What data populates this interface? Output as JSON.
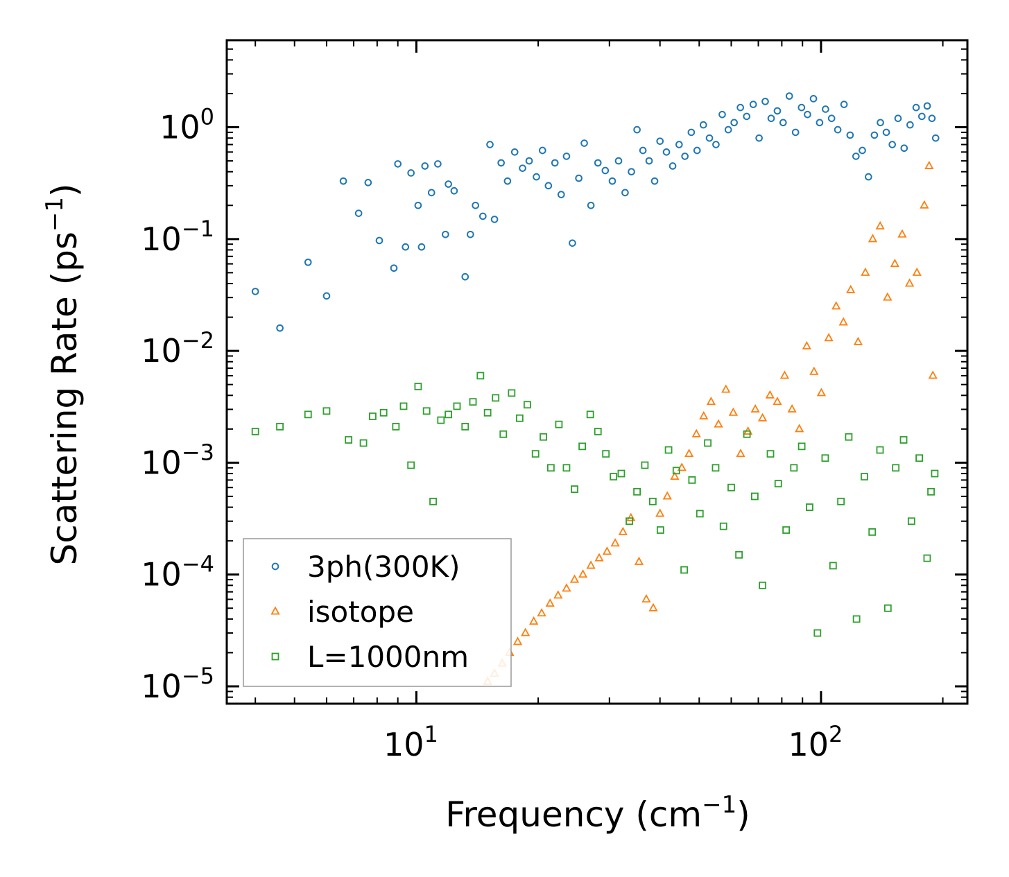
{
  "chart_data": {
    "type": "scatter",
    "title": "",
    "xlabel": "Frequency (cm",
    "xlabel_sup": "−1",
    "xlabel_end": ")",
    "ylabel": "Scattering Rate (ps",
    "ylabel_sup": "−1",
    "ylabel_end": ")",
    "xscale": "log",
    "yscale": "log",
    "xlim": [
      3.4,
      230
    ],
    "ylim": [
      7e-06,
      6
    ],
    "x_ticks": [
      {
        "value": 10,
        "base": "10",
        "exp": "1"
      },
      {
        "value": 100,
        "base": "10",
        "exp": "2"
      }
    ],
    "y_ticks": [
      {
        "value": 1,
        "base": "10",
        "exp": "0"
      },
      {
        "value": 0.1,
        "base": "10",
        "exp": "−1"
      },
      {
        "value": 0.01,
        "base": "10",
        "exp": "−2"
      },
      {
        "value": 0.001,
        "base": "10",
        "exp": "−3"
      },
      {
        "value": 0.0001,
        "base": "10",
        "exp": "−4"
      },
      {
        "value": 1e-05,
        "base": "10",
        "exp": "−5"
      }
    ],
    "legend_position": "bottom-left",
    "series": [
      {
        "name": "3ph(300K)",
        "marker": "circle",
        "color": "#1f77b4",
        "x": [
          4.0,
          4.6,
          5.4,
          6.0,
          6.6,
          7.2,
          7.6,
          8.1,
          8.8,
          9.0,
          9.4,
          9.7,
          10.1,
          10.3,
          10.5,
          10.9,
          11.3,
          11.8,
          12.0,
          12.4,
          13.2,
          13.6,
          14.0,
          14.6,
          15.2,
          15.6,
          16.2,
          16.8,
          17.5,
          18.3,
          19.0,
          19.8,
          20.5,
          21.2,
          22.0,
          22.8,
          23.5,
          24.3,
          25.2,
          26.0,
          27.0,
          28.1,
          29.3,
          30.5,
          31.6,
          32.8,
          34.0,
          35.1,
          36.3,
          37.6,
          38.8,
          40.0,
          41.5,
          43.0,
          44.6,
          46.1,
          47.8,
          49.4,
          51.2,
          53.0,
          55.0,
          57.0,
          59.0,
          61.0,
          63.2,
          65.5,
          68.0,
          70.3,
          72.8,
          75.3,
          78.0,
          80.6,
          83.5,
          86.5,
          89.5,
          92.6,
          95.8,
          99.2,
          102.6,
          106.2,
          110.0,
          114.0,
          118.0,
          122.0,
          126.5,
          131.0,
          135.5,
          140.2,
          145.0,
          150.0,
          155.0,
          160.5,
          166.0,
          171.8,
          177.5,
          183.0,
          188.0,
          192.0
        ],
        "y": [
          0.034,
          0.016,
          0.062,
          0.031,
          0.33,
          0.17,
          0.32,
          0.097,
          0.055,
          0.47,
          0.085,
          0.39,
          0.2,
          0.085,
          0.45,
          0.26,
          0.47,
          0.11,
          0.31,
          0.27,
          0.046,
          0.11,
          0.2,
          0.16,
          0.7,
          0.15,
          0.48,
          0.33,
          0.6,
          0.43,
          0.5,
          0.36,
          0.62,
          0.3,
          0.48,
          0.25,
          0.55,
          0.092,
          0.35,
          0.72,
          0.2,
          0.48,
          0.41,
          0.33,
          0.5,
          0.26,
          0.4,
          0.95,
          0.62,
          0.5,
          0.33,
          0.75,
          0.6,
          0.45,
          0.7,
          0.55,
          0.9,
          0.62,
          1.05,
          0.8,
          0.7,
          1.3,
          0.95,
          1.1,
          1.5,
          1.25,
          1.6,
          0.8,
          1.7,
          1.2,
          1.4,
          1.1,
          1.9,
          0.9,
          1.5,
          1.3,
          1.8,
          1.1,
          1.45,
          1.2,
          0.95,
          1.6,
          0.85,
          0.55,
          0.62,
          0.36,
          0.85,
          1.1,
          0.9,
          0.7,
          1.2,
          0.65,
          1.05,
          1.5,
          1.25,
          1.55,
          1.2,
          0.8
        ]
      },
      {
        "name": "isotope",
        "marker": "triangle",
        "color": "#ff7f0e",
        "x": [
          15.0,
          15.6,
          16.3,
          17.0,
          17.8,
          18.6,
          19.5,
          20.4,
          21.4,
          22.4,
          23.5,
          24.6,
          25.8,
          27.0,
          28.3,
          29.6,
          31.0,
          32.4,
          33.9,
          35.5,
          37.0,
          38.5,
          40.0,
          41.7,
          43.5,
          45.3,
          47.2,
          49.2,
          51.3,
          53.5,
          55.8,
          58.2,
          60.7,
          63.3,
          66.0,
          68.8,
          71.7,
          74.8,
          78.0,
          81.3,
          84.8,
          88.4,
          92.2,
          96.1,
          100.2,
          104.5,
          109.0,
          113.6,
          118.4,
          123.5,
          128.7,
          134.2,
          140.0,
          146.0,
          152.2,
          158.7,
          165.5,
          172.6,
          180.0,
          185.0,
          189.0
        ],
        "y": [
          1.1e-05,
          1.3e-05,
          1.6e-05,
          2e-05,
          2.5e-05,
          3e-05,
          3.8e-05,
          4.5e-05,
          5.5e-05,
          6.5e-05,
          7.5e-05,
          9e-05,
          0.0001,
          0.00012,
          0.00014,
          0.00016,
          0.00019,
          0.00024,
          0.00032,
          0.00013,
          6e-05,
          5e-05,
          0.00035,
          0.0005,
          0.00075,
          0.0009,
          0.0012,
          0.0018,
          0.0026,
          0.0035,
          0.0022,
          0.0045,
          0.0028,
          0.0012,
          0.0019,
          0.003,
          0.0025,
          0.004,
          0.0035,
          0.006,
          0.003,
          0.002,
          0.011,
          0.0065,
          0.0042,
          0.013,
          0.025,
          0.018,
          0.035,
          0.012,
          0.05,
          0.1,
          0.13,
          0.03,
          0.06,
          0.11,
          0.04,
          0.05,
          0.2,
          0.45,
          0.006
        ]
      },
      {
        "name": "L=1000nm",
        "marker": "square",
        "color": "#2ca02c",
        "x": [
          4.0,
          4.6,
          5.4,
          6.0,
          6.8,
          7.4,
          7.8,
          8.3,
          8.9,
          9.3,
          9.7,
          10.1,
          10.6,
          11.0,
          11.5,
          12.0,
          12.6,
          13.2,
          13.8,
          14.4,
          15.0,
          15.7,
          16.4,
          17.2,
          18.0,
          18.8,
          19.7,
          20.6,
          21.5,
          22.5,
          23.5,
          24.6,
          25.7,
          26.9,
          28.1,
          29.4,
          30.7,
          32.1,
          33.6,
          35.1,
          36.7,
          38.4,
          40.1,
          42.0,
          43.9,
          45.9,
          48.0,
          50.2,
          52.5,
          54.9,
          57.4,
          60.0,
          62.7,
          65.6,
          68.6,
          71.7,
          75.0,
          78.4,
          82.0,
          85.7,
          89.6,
          93.7,
          98.0,
          102.4,
          107.1,
          112.0,
          117.1,
          122.4,
          128.0,
          133.8,
          139.9,
          146.3,
          153.0,
          160.0,
          167.3,
          174.9,
          182.9,
          187.0,
          191.0
        ],
        "y": [
          0.0019,
          0.0021,
          0.0027,
          0.0029,
          0.0016,
          0.0015,
          0.0026,
          0.0028,
          0.0021,
          0.0032,
          0.00095,
          0.0048,
          0.0029,
          0.00045,
          0.0024,
          0.0027,
          0.0032,
          0.0021,
          0.0035,
          0.006,
          0.0028,
          0.0038,
          0.0018,
          0.0042,
          0.0025,
          0.0033,
          0.0012,
          0.0017,
          0.0009,
          0.0022,
          0.0009,
          0.00058,
          0.0014,
          0.0027,
          0.0019,
          0.0012,
          0.00075,
          0.0008,
          0.0003,
          0.00055,
          0.00095,
          0.00045,
          0.00025,
          0.0013,
          0.00085,
          0.00011,
          0.0007,
          0.00035,
          0.0015,
          0.0009,
          0.00027,
          0.0006,
          0.00015,
          0.0018,
          0.0005,
          8e-05,
          0.0012,
          0.00065,
          0.00025,
          0.0009,
          0.0014,
          0.0004,
          3e-05,
          0.0011,
          0.00012,
          0.00045,
          0.0017,
          4e-05,
          0.00075,
          0.00024,
          0.0013,
          5e-05,
          0.0009,
          0.0016,
          0.0003,
          0.0011,
          0.00014,
          0.00055,
          0.0008
        ]
      }
    ]
  }
}
